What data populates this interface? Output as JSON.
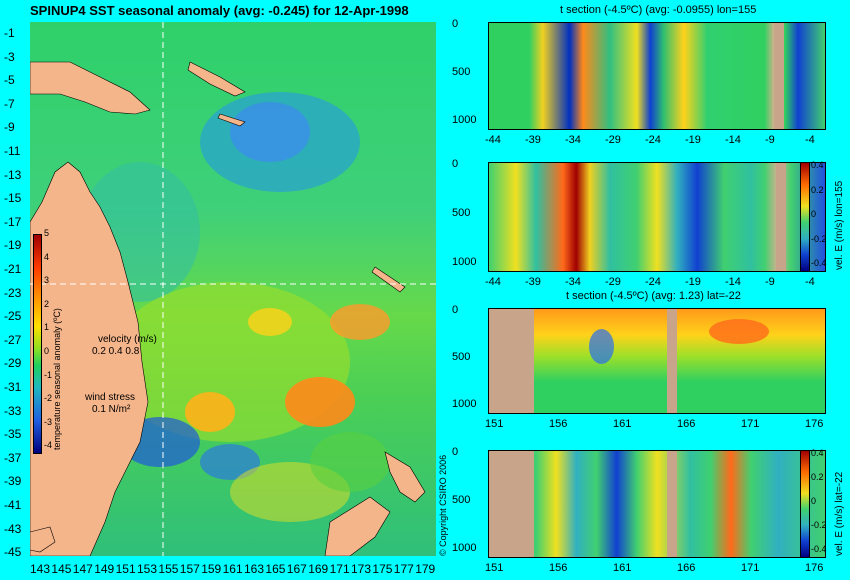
{
  "map": {
    "title": "SPINUP4 SST seasonal anomaly  (avg: -0.245)  for 12-Apr-1998",
    "lat_ticks": [
      "-1",
      "-3",
      "-5",
      "-7",
      "-9",
      "-11",
      "-13",
      "-15",
      "-17",
      "-19",
      "-21",
      "-23",
      "-25",
      "-27",
      "-29",
      "-31",
      "-33",
      "-35",
      "-37",
      "-39",
      "-41",
      "-43",
      "-45"
    ],
    "lon_ticks": [
      "143",
      "145",
      "147",
      "149",
      "151",
      "153",
      "155",
      "157",
      "159",
      "161",
      "163",
      "165",
      "167",
      "169",
      "171",
      "173",
      "175",
      "177",
      "179"
    ],
    "colorbar_ticks": [
      "5",
      "4",
      "3",
      "2",
      "1",
      "0",
      "-1",
      "-2",
      "-3",
      "-4"
    ],
    "colorbar_label": "temperature seasonal anomaly (ºC)",
    "velocity_label": "velocity (m/s)",
    "velocity_scale": "0.2 0.4 0.8",
    "wind_label": "wind stress",
    "wind_scale": "0.1 N/m²",
    "copyright": "© Copyright CSIRO 2006"
  },
  "panels": [
    {
      "title": "t section (-4.5ºC) (avg: -0.0955) lon=155",
      "x_ticks": [
        "-44",
        "-39",
        "-34",
        "-29",
        "-24",
        "-19",
        "-14",
        "-9",
        "-4"
      ],
      "y_ticks": [
        "0",
        "500",
        "1000"
      ]
    },
    {
      "title": "",
      "x_ticks": [
        "-44",
        "-39",
        "-34",
        "-29",
        "-24",
        "-19",
        "-14",
        "-9",
        "-4"
      ],
      "y_ticks": [
        "0",
        "500",
        "1000"
      ],
      "cbar_ticks": [
        "0.4",
        "0.2",
        "0",
        "-0.2",
        "-0.4"
      ],
      "cbar_label": "vel. E (m/s) lon=155"
    },
    {
      "title": "t section (-4.5ºC) (avg: 1.23) lat=-22",
      "x_ticks": [
        "151",
        "156",
        "161",
        "166",
        "171",
        "176"
      ],
      "y_ticks": [
        "0",
        "500",
        "1000"
      ]
    },
    {
      "title": "",
      "x_ticks": [
        "151",
        "156",
        "161",
        "166",
        "171",
        "176"
      ],
      "y_ticks": [
        "0",
        "500",
        "1000"
      ],
      "cbar_ticks": [
        "0.4",
        "0.2",
        "0",
        "-0.2",
        "-0.4"
      ],
      "cbar_label": "vel. E (m/s) lat=-22"
    }
  ]
}
